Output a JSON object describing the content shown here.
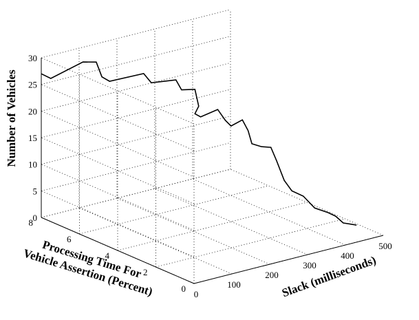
{
  "chart_data": {
    "type": "line",
    "projection": "3d",
    "grid": true,
    "title": "",
    "xlabel": "Slack (milliseconds)",
    "ylabel": "Processing Time For\nVehicle Assertion (Percent)",
    "zlabel": "Number of Vehicles",
    "xlim": [
      0,
      500
    ],
    "ylim": [
      0,
      8
    ],
    "zlim": [
      0,
      30
    ],
    "xticks": [
      0,
      100,
      200,
      300,
      400,
      500
    ],
    "yticks": [
      0,
      2,
      4,
      6,
      8
    ],
    "zticks": [
      0,
      5,
      10,
      15,
      20,
      25,
      30
    ],
    "series": [
      {
        "points": [
          [
            0,
            8,
            27
          ],
          [
            10,
            7.7,
            26.4
          ],
          [
            90,
            7.6,
            28.2
          ],
          [
            120,
            7.5,
            27.8
          ],
          [
            130,
            7.4,
            25
          ],
          [
            140,
            7.2,
            24.3
          ],
          [
            210,
            6.8,
            25.1
          ],
          [
            220,
            6.6,
            23.5
          ],
          [
            270,
            6.3,
            23.6
          ],
          [
            280,
            6.2,
            21.7
          ],
          [
            300,
            5.9,
            21.9
          ],
          [
            305,
            5.8,
            18.8
          ],
          [
            290,
            5.7,
            17.8
          ],
          [
            300,
            5.6,
            17.2
          ],
          [
            330,
            5.3,
            18.5
          ],
          [
            340,
            5.1,
            16.6
          ],
          [
            350,
            5.0,
            15.5
          ],
          [
            370,
            4.8,
            16.6
          ],
          [
            375,
            4.6,
            14.8
          ],
          [
            380,
            4.5,
            12.4
          ],
          [
            395,
            4.3,
            11.9
          ],
          [
            410,
            4.1,
            11.8
          ],
          [
            415,
            3.9,
            9.5
          ],
          [
            420,
            3.6,
            6.2
          ],
          [
            425,
            3.3,
            4.6
          ],
          [
            440,
            3.0,
            3.8
          ],
          [
            450,
            2.6,
            2.0
          ],
          [
            465,
            2.2,
            1.5
          ],
          [
            470,
            1.9,
            1.2
          ],
          [
            475,
            1.6,
            0.3
          ],
          [
            495,
            1.3,
            0
          ]
        ]
      }
    ]
  }
}
